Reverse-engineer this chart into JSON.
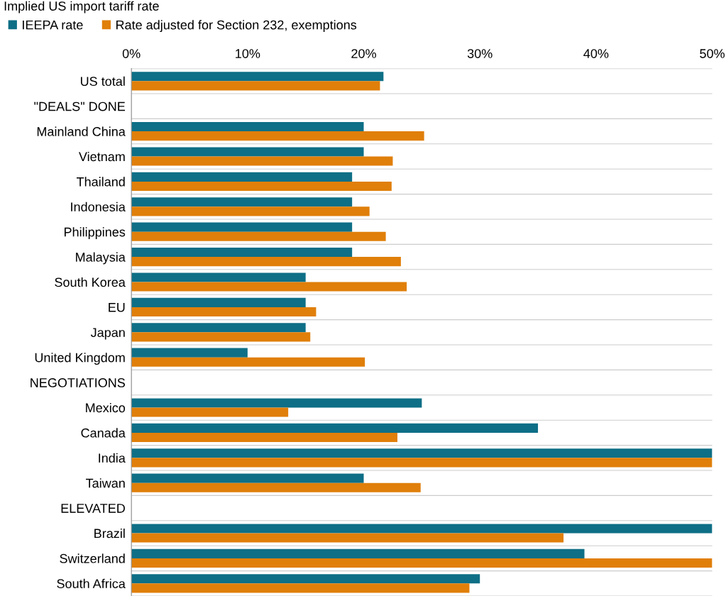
{
  "chart_data": {
    "type": "bar",
    "orientation": "horizontal",
    "title": "Implied US import tariff rate",
    "categories": [
      "US total",
      "\"DEALS\" DONE",
      "Mainland China",
      "Vietnam",
      "Thailand",
      "Indonesia",
      "Philippines",
      "Malaysia",
      "South Korea",
      "EU",
      "Japan",
      "United Kingdom",
      "NEGOTIATIONS",
      "Mexico",
      "Canada",
      "India",
      "Taiwan",
      "ELEVATED",
      "Brazil",
      "Switzerland",
      "South Africa"
    ],
    "series": [
      {
        "name": "IEEPA rate",
        "color": "#0e6f86",
        "values": [
          21.7,
          null,
          20,
          20,
          19,
          19,
          19,
          19,
          15,
          15,
          15,
          10,
          null,
          25,
          35,
          50,
          20,
          null,
          50,
          39,
          30
        ]
      },
      {
        "name": "Rate adjusted for Section 232, exemptions",
        "color": "#e07f0a",
        "values": [
          21.4,
          null,
          25.2,
          22.5,
          22.4,
          20.5,
          21.9,
          23.2,
          23.7,
          15.9,
          15.4,
          20.1,
          null,
          13.5,
          22.9,
          50,
          24.9,
          null,
          37.2,
          50,
          29.1
        ]
      }
    ],
    "xlim": [
      0,
      50
    ],
    "xticks": [
      {
        "value": 0,
        "label": "0%"
      },
      {
        "value": 10,
        "label": "10%"
      },
      {
        "value": 20,
        "label": "20%"
      },
      {
        "value": 30,
        "label": "30%"
      },
      {
        "value": 40,
        "label": "40%"
      },
      {
        "value": 50,
        "label": "50%"
      }
    ],
    "grid": "y",
    "legend": "top left"
  }
}
